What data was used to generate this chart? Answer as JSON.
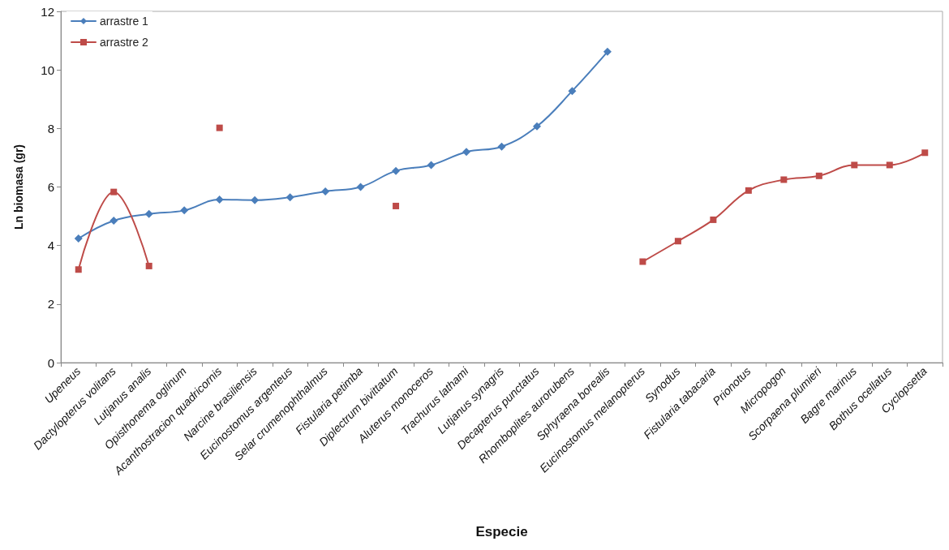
{
  "chart_data": {
    "type": "line",
    "xlabel": "Especie",
    "ylabel": "Ln biomasa (gr)",
    "categories": [
      "Upeneus",
      "Dactylopterus volitans",
      "Lutjanus analis",
      "Opisthonema oglinum",
      "Acanthostracion quadricornis",
      "Narcine brasiliensis",
      "Eucinostomus argenteus",
      "Selar crumenophthalmus",
      "Fistularia petimba",
      "Diplectrum bivittatum",
      "Aluterus monoceros",
      "Trachurus lathami",
      "Lutjanus synagris",
      "Decapterus punctatus",
      "Rhomboplites aurorubens",
      "Sphyraena borealis",
      "Eucinostomus melanopterus",
      "Synodus",
      "Fistularia tabacaria",
      "Prionotus",
      "Micropogon",
      "Scorpaena plumieri",
      "Bagre marinus",
      "Bothus ocellatus",
      "Cyclopsetta"
    ],
    "series": [
      {
        "name": "arrastre 1",
        "color": "#4a7ebb",
        "marker": "diamond",
        "values": [
          4.24,
          4.85,
          5.08,
          5.2,
          5.57,
          5.55,
          5.65,
          5.85,
          6.0,
          6.55,
          6.75,
          7.2,
          7.38,
          8.07,
          9.28,
          10.62,
          null,
          null,
          null,
          null,
          null,
          null,
          null,
          null,
          null
        ]
      },
      {
        "name": "arrastre 2",
        "color": "#be4b48",
        "marker": "square",
        "values": [
          3.18,
          5.83,
          3.3,
          null,
          8.02,
          null,
          null,
          null,
          null,
          5.35,
          null,
          null,
          null,
          null,
          null,
          null,
          3.45,
          4.15,
          4.88,
          5.88,
          6.25,
          6.38,
          6.75,
          6.75,
          7.17
        ]
      }
    ],
    "ylim": [
      0,
      12
    ],
    "yticks": [
      0,
      2,
      4,
      6,
      8,
      10,
      12
    ],
    "grid": false,
    "legend": "top left",
    "line_style": "solid"
  }
}
